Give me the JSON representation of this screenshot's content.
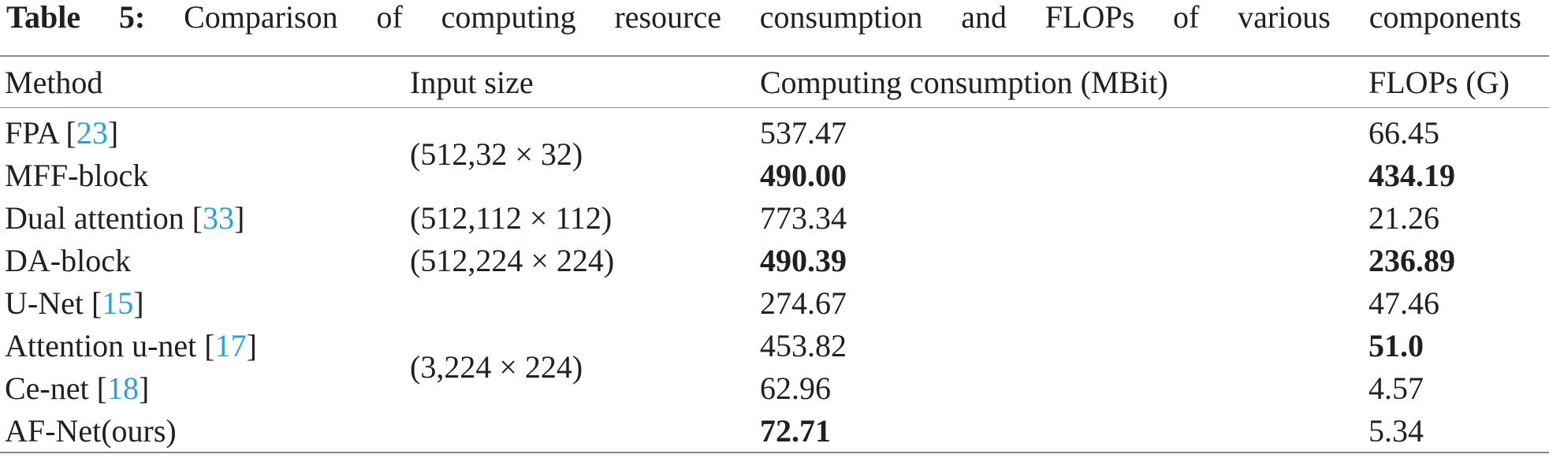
{
  "caption": {
    "label": "Table 5:",
    "text": "Comparison of computing resource consumption and FLOPs of various components"
  },
  "table": {
    "headers": [
      "Method",
      "Input size",
      "Computing consumption (MBit)",
      "FLOPs (G)"
    ],
    "input_groups": [
      {
        "text": "(512,32 × 32)",
        "rows": 2
      },
      {
        "text": "(512,112 × 112)",
        "rows": 1
      },
      {
        "text": "(512,224 × 224)",
        "rows": 1
      },
      {
        "text": "(3,224 × 224)",
        "rows": 4
      }
    ],
    "rows": [
      {
        "method": [
          {
            "text": "FPA ["
          },
          {
            "text": "23",
            "ref": true
          },
          {
            "text": "]"
          }
        ],
        "computing": {
          "text": "537.47",
          "bold": false
        },
        "flops": {
          "text": "66.45",
          "bold": false
        }
      },
      {
        "method": [
          {
            "text": "MFF-block"
          }
        ],
        "computing": {
          "text": "490.00",
          "bold": true
        },
        "flops": {
          "text": "434.19",
          "bold": true
        }
      },
      {
        "method": [
          {
            "text": "Dual attention ["
          },
          {
            "text": "33",
            "ref": true
          },
          {
            "text": "]"
          }
        ],
        "computing": {
          "text": "773.34",
          "bold": false
        },
        "flops": {
          "text": "21.26",
          "bold": false
        }
      },
      {
        "method": [
          {
            "text": "DA-block"
          }
        ],
        "computing": {
          "text": "490.39",
          "bold": true
        },
        "flops": {
          "text": "236.89",
          "bold": true
        }
      },
      {
        "method": [
          {
            "text": "U-Net ["
          },
          {
            "text": "15",
            "ref": true
          },
          {
            "text": "]"
          }
        ],
        "computing": {
          "text": "274.67",
          "bold": false
        },
        "flops": {
          "text": "47.46",
          "bold": false
        }
      },
      {
        "method": [
          {
            "text": "Attention u-net ["
          },
          {
            "text": "17",
            "ref": true
          },
          {
            "text": "]"
          }
        ],
        "computing": {
          "text": "453.82",
          "bold": false
        },
        "flops": {
          "text": "51.0",
          "bold": true
        }
      },
      {
        "method": [
          {
            "text": "Ce-net ["
          },
          {
            "text": "18",
            "ref": true
          },
          {
            "text": "]"
          }
        ],
        "computing": {
          "text": "62.96",
          "bold": false
        },
        "flops": {
          "text": "4.57",
          "bold": false
        }
      },
      {
        "method": [
          {
            "text": "AF-Net(ours)"
          }
        ],
        "computing": {
          "text": "72.71",
          "bold": true
        },
        "flops": {
          "text": "5.34",
          "bold": false
        }
      }
    ]
  }
}
